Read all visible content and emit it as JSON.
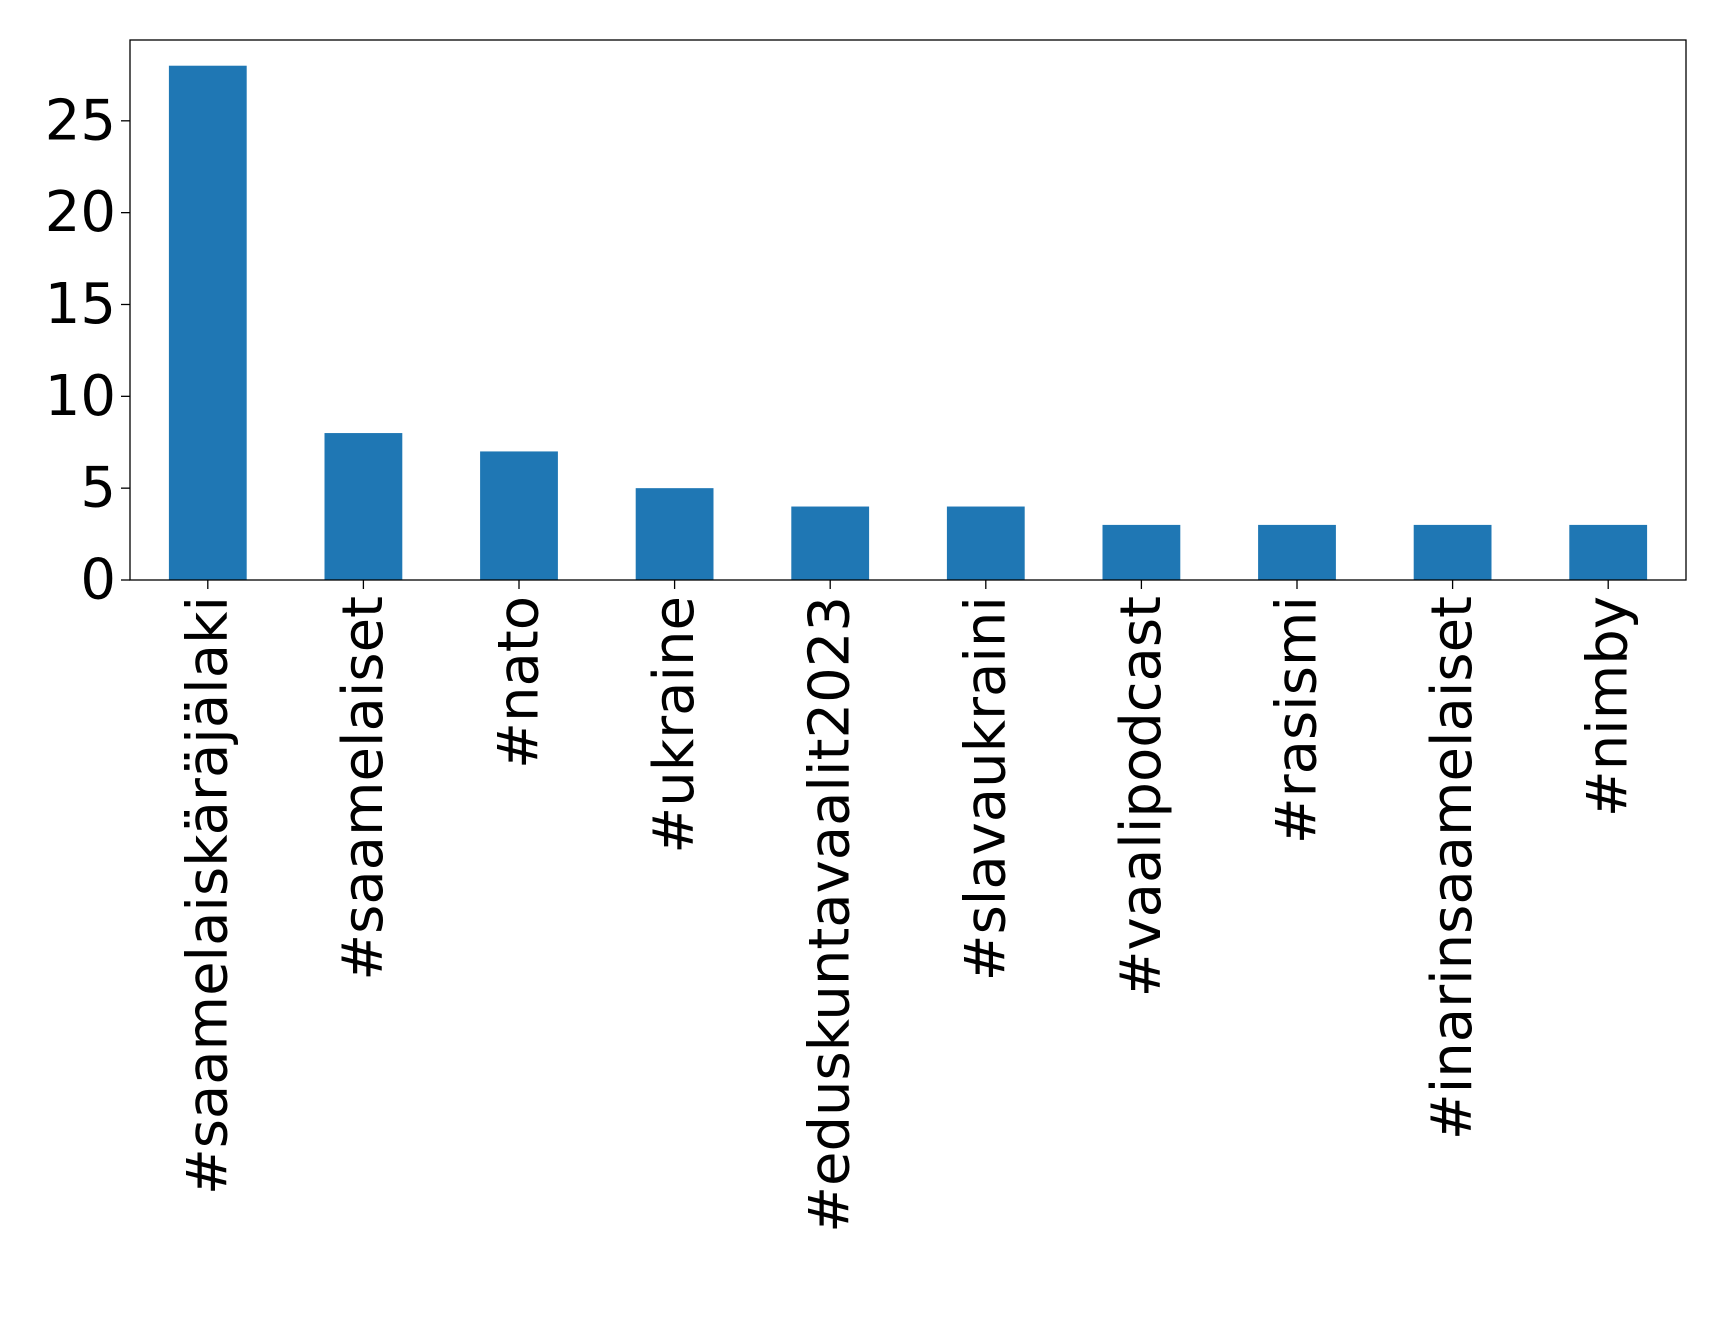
{
  "chart_data": {
    "type": "bar",
    "title": "",
    "xlabel": "",
    "ylabel": "",
    "categories": [
      "#saamelaiskäräjälaki",
      "#saamelaiset",
      "#nato",
      "#ukraine",
      "#eduskuntavaalit2023",
      "#slavaukraini",
      "#vaalipodcast",
      "#rasismi",
      "#inarinsaamelaiset",
      "#nimby"
    ],
    "values": [
      28,
      8,
      7,
      5,
      4,
      4,
      3,
      3,
      3,
      3
    ],
    "ylim": [
      0,
      29.4
    ],
    "yticks": [
      0,
      5,
      10,
      15,
      20,
      25
    ],
    "grid": false,
    "bar_color": "#1f77b4"
  }
}
